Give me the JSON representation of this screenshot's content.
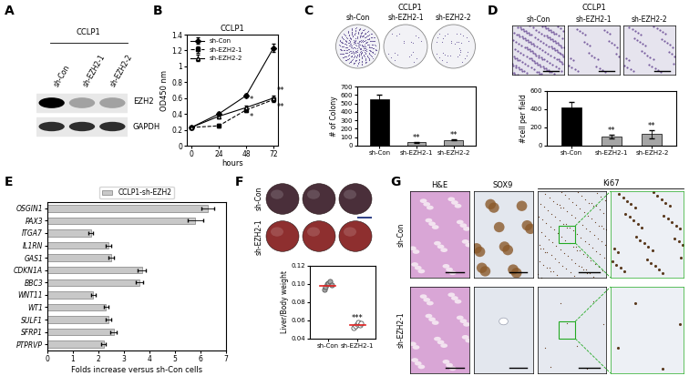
{
  "panel_letters": [
    "A",
    "B",
    "C",
    "D",
    "E",
    "F",
    "G"
  ],
  "panel_a": {
    "title": "CCLP1",
    "lanes": [
      "sh-Con",
      "sh-EZH2-1",
      "sh-EZH2-2"
    ],
    "bands": [
      "EZH2",
      "GAPDH"
    ]
  },
  "panel_c_images": {
    "title": "CCLP1",
    "labels": [
      "sh-Con",
      "sh-EZH2-1",
      "sh-EZH2-2"
    ]
  },
  "panel_d_images": {
    "title": "CCLP1",
    "labels": [
      "sh-Con",
      "sh-EZH2-1",
      "sh-EZH2-2"
    ]
  },
  "panel_f_images": {
    "rows": [
      "sh-Con",
      "sh-EZH2-1"
    ]
  },
  "panel_g": {
    "columns": [
      "H&E",
      "SOX9",
      "Ki67"
    ],
    "rows": [
      "sh-Con",
      "sh-EZH2-1"
    ]
  },
  "chart_data": [
    {
      "type": "line",
      "title": "CCLP1",
      "xlabel": "hours",
      "ylabel": "OD450 nm",
      "x": [
        0,
        24,
        48,
        72
      ],
      "xlim": [
        -4,
        76
      ],
      "xticks": [
        0,
        24,
        48,
        72
      ],
      "ylim": [
        0,
        1.4
      ],
      "yticks": [
        0,
        0.2,
        0.4,
        0.6,
        0.8,
        1,
        1.2,
        1.4
      ],
      "legend": "upper left",
      "series": [
        {
          "name": "sh-Con",
          "color": "#000000",
          "marker": "diamond",
          "line_style": "solid",
          "values": [
            0.23,
            0.4,
            0.63,
            1.23
          ],
          "errors": [
            0.01,
            0.02,
            0.02,
            0.05
          ]
        },
        {
          "name": "sh-EZH2-1",
          "color": "#000000",
          "marker": "square",
          "line_style": "dashed",
          "values": [
            0.23,
            0.25,
            0.45,
            0.58
          ],
          "errors": [
            0.01,
            0.02,
            0.02,
            0.03
          ]
        },
        {
          "name": "sh-EZH2-2",
          "color": "#000000",
          "marker": "triangle",
          "line_style": "solid",
          "values": [
            0.23,
            0.37,
            0.48,
            0.6
          ],
          "errors": [
            0.01,
            0.02,
            0.02,
            0.03
          ]
        }
      ],
      "annotations": [
        {
          "text": "*",
          "series": "sh-EZH2-1",
          "x": 48
        },
        {
          "text": "*",
          "series": "sh-EZH2-2",
          "x": 48
        },
        {
          "text": "**",
          "series": "sh-EZH2-1",
          "x": 72
        },
        {
          "text": "**",
          "series": "sh-EZH2-2",
          "x": 72
        }
      ]
    },
    {
      "type": "bar",
      "ylabel": "# of Colony",
      "categories": [
        "sh-Con",
        "sh-EZH2-1",
        "sh-EZH2-2"
      ],
      "values": [
        550,
        40,
        70
      ],
      "errors": [
        50,
        5,
        8
      ],
      "colors": [
        "#000000",
        "#a6a6a6",
        "#a6a6a6"
      ],
      "ylim": [
        0,
        700
      ],
      "yticks": [
        0,
        100,
        200,
        300,
        400,
        500,
        600,
        700
      ],
      "annotations": [
        {
          "text": "**",
          "category": "sh-EZH2-1"
        },
        {
          "text": "**",
          "category": "sh-EZH2-2"
        }
      ]
    },
    {
      "type": "bar",
      "ylabel": "#cell per field",
      "categories": [
        "sh-Con",
        "sh-EZH2-1",
        "sh-EZH2-2"
      ],
      "values": [
        420,
        100,
        130
      ],
      "errors": [
        60,
        20,
        45
      ],
      "colors": [
        "#000000",
        "#a6a6a6",
        "#a6a6a6"
      ],
      "ylim": [
        0,
        600
      ],
      "yticks": [
        0,
        200,
        400,
        600
      ],
      "annotations": [
        {
          "text": "**",
          "category": "sh-EZH2-1"
        },
        {
          "text": "**",
          "category": "sh-EZH2-2"
        }
      ]
    },
    {
      "type": "bar",
      "orientation": "horizontal",
      "xlabel": "Folds increase versus sh-Con cells",
      "categories": [
        "OSGIN1",
        "PAX3",
        "ITGA7",
        "IL1RN",
        "GAS1",
        "CDKN1A",
        "BBC3",
        "WNT11",
        "WT1",
        "SULF1",
        "SFRP1",
        "PTPRVP"
      ],
      "series": [
        {
          "name": "CCLP1-sh-EZH2",
          "color": "#c8c8c8",
          "values": [
            6.3,
            5.8,
            1.7,
            2.4,
            2.5,
            3.7,
            3.6,
            1.8,
            2.3,
            2.4,
            2.6,
            2.2
          ],
          "errors": [
            0.25,
            0.3,
            0.1,
            0.1,
            0.1,
            0.15,
            0.15,
            0.1,
            0.1,
            0.1,
            0.12,
            0.1
          ]
        }
      ],
      "xlim": [
        0,
        7
      ],
      "xticks": [
        0,
        1,
        2,
        3,
        4,
        5,
        6,
        7
      ],
      "legend": "upper center"
    },
    {
      "type": "scatter",
      "ylabel": "Liver/Body weight",
      "categories": [
        "sh-Con",
        "sh-EZH2-1"
      ],
      "values": [
        [
          0.094,
          0.097,
          0.1,
          0.101,
          0.103,
          0.099
        ],
        [
          0.052,
          0.054,
          0.056,
          0.058,
          0.055,
          0.057
        ]
      ],
      "means": [
        0.098,
        0.055
      ],
      "colors": [
        "#a6a6a6",
        "#ffffff"
      ],
      "ylim": [
        0.04,
        0.12
      ],
      "yticks": [
        0.04,
        0.06,
        0.08,
        {
          "value": 0.1,
          "label": "0.10"
        },
        0.12
      ],
      "annotations": [
        {
          "text": "***",
          "category": "sh-EZH2-1"
        }
      ]
    }
  ]
}
